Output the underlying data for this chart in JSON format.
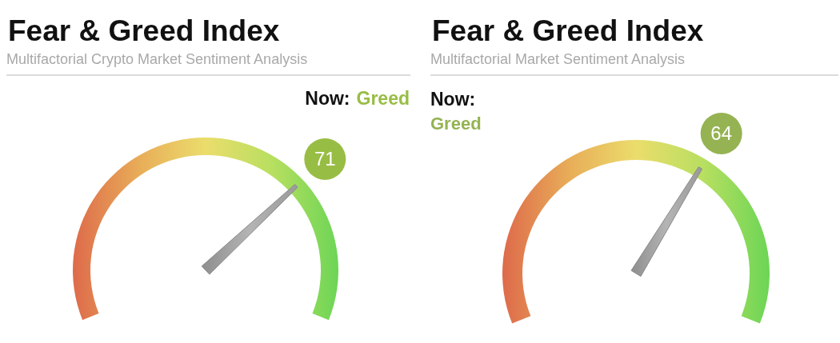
{
  "chart_data": [
    {
      "type": "other",
      "title": "Fear & Greed Index",
      "subtitle": "Multifactorial Crypto Market Sentiment Analysis",
      "annotations": [
        "Now:",
        "Greed"
      ],
      "values": [
        71
      ],
      "value_labels": [
        "71"
      ],
      "color": "#98bd44"
    },
    {
      "type": "other",
      "title": "Fear & Greed Index",
      "subtitle": "Multifactorial Market Sentiment Analysis",
      "annotations": [
        "Now:",
        "Greed"
      ],
      "values": [
        64
      ],
      "value_labels": [
        "64"
      ],
      "color": "#95b352"
    }
  ]
}
